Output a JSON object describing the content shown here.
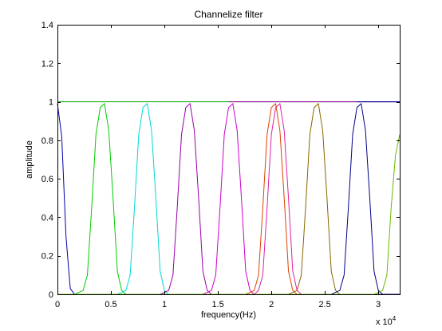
{
  "chart_data": {
    "type": "line",
    "title": "Channelize filter",
    "xlabel": "frequency(Hz)",
    "ylabel": "amplitude",
    "xlim": [
      0,
      32000
    ],
    "ylim": [
      0,
      1.4
    ],
    "x_exponent_label": {
      "base": "x 10",
      "exp": "4"
    },
    "xticks": [
      0,
      5000,
      10000,
      15000,
      20000,
      25000,
      30000
    ],
    "xtick_labels": [
      "0",
      "0.5",
      "1",
      "1.5",
      "2",
      "2.5",
      "3"
    ],
    "yticks": [
      0,
      0.2,
      0.4,
      0.6,
      0.8,
      1,
      1.2,
      1.4
    ],
    "ytick_labels": [
      "0",
      "0.2",
      "0.4",
      "0.6",
      "0.8",
      "1",
      "1.2",
      "1.4"
    ],
    "grid": false,
    "series": [
      {
        "color": "#0000aa",
        "x": [
          0,
          400,
          800,
          1200,
          1600,
          2000,
          2400,
          2800,
          3200,
          32000
        ],
        "y": [
          0.99,
          0.82,
          0.3,
          0.03,
          0.0,
          0.0,
          0.0,
          0.0,
          0.0,
          0.0
        ]
      },
      {
        "color": "#00cc00",
        "x": [
          0,
          1200,
          1600,
          2000,
          2400,
          2800,
          3200,
          3600,
          4000,
          4400,
          4800,
          5200,
          5600,
          6000,
          6400,
          32000
        ],
        "y": [
          0.0,
          0.0,
          0.0,
          0.01,
          0.02,
          0.1,
          0.45,
          0.83,
          0.97,
          0.99,
          0.85,
          0.5,
          0.12,
          0.02,
          0.0,
          0.0
        ]
      },
      {
        "color": "#00d8d8",
        "x": [
          0,
          5200,
          5600,
          6000,
          6400,
          6800,
          7200,
          7600,
          8000,
          8400,
          8800,
          9200,
          9600,
          10000,
          10400,
          32000
        ],
        "y": [
          0.0,
          0.0,
          0.0,
          0.01,
          0.02,
          0.1,
          0.45,
          0.83,
          0.97,
          0.99,
          0.85,
          0.5,
          0.12,
          0.02,
          0.0,
          0.0
        ]
      },
      {
        "color": "#9900aa",
        "x": [
          0,
          9200,
          9600,
          10000,
          10400,
          10800,
          11200,
          11600,
          12000,
          12400,
          12800,
          13200,
          13600,
          14000,
          14400,
          32000
        ],
        "y": [
          0.0,
          0.0,
          0.0,
          0.01,
          0.02,
          0.1,
          0.45,
          0.83,
          0.97,
          0.99,
          0.85,
          0.5,
          0.12,
          0.02,
          0.0,
          0.0
        ]
      },
      {
        "color": "#cc00cc",
        "x": [
          0,
          13200,
          13600,
          14000,
          14400,
          14800,
          15200,
          15600,
          16000,
          16400,
          16800,
          17200,
          17600,
          18000,
          18400,
          32000
        ],
        "y": [
          0.0,
          0.0,
          0.0,
          0.01,
          0.02,
          0.1,
          0.45,
          0.83,
          0.97,
          0.99,
          0.85,
          0.5,
          0.12,
          0.02,
          0.0,
          0.0
        ]
      },
      {
        "color": "#dd4400",
        "x": [
          0,
          17200,
          17600,
          18000,
          18400,
          18800,
          19200,
          19600,
          20000,
          20400,
          20800,
          21200,
          21600,
          22000,
          22400,
          32000
        ],
        "y": [
          0.0,
          0.0,
          0.0,
          0.01,
          0.02,
          0.1,
          0.45,
          0.83,
          0.97,
          0.99,
          0.85,
          0.5,
          0.12,
          0.02,
          0.0,
          0.0
        ]
      },
      {
        "color": "#dd22aa",
        "x": [
          0,
          17600,
          18000,
          18400,
          18800,
          19200,
          19600,
          20000,
          20400,
          20800,
          21200,
          21600,
          22000,
          22400,
          22800,
          23200,
          32000
        ],
        "y": [
          0.0,
          0.0,
          0.0,
          0.0,
          0.02,
          0.1,
          0.45,
          0.83,
          0.97,
          0.99,
          0.85,
          0.5,
          0.12,
          0.02,
          0.0,
          0.0,
          0.0
        ]
      },
      {
        "color": "#886600",
        "x": [
          0,
          21200,
          21600,
          22000,
          22400,
          22800,
          23200,
          23600,
          24000,
          24400,
          24800,
          25200,
          25600,
          26000,
          26400,
          32000
        ],
        "y": [
          0.0,
          0.0,
          0.0,
          0.01,
          0.02,
          0.1,
          0.45,
          0.83,
          0.97,
          0.99,
          0.85,
          0.5,
          0.12,
          0.02,
          0.0,
          0.0
        ]
      },
      {
        "color": "#000088",
        "x": [
          0,
          25200,
          25600,
          26000,
          26400,
          26800,
          27200,
          27600,
          28000,
          28400,
          28800,
          29200,
          29600,
          30000,
          30400,
          32000
        ],
        "y": [
          0.0,
          0.0,
          0.0,
          0.01,
          0.02,
          0.1,
          0.45,
          0.83,
          0.97,
          0.99,
          0.85,
          0.5,
          0.12,
          0.02,
          0.0,
          0.0
        ]
      },
      {
        "color": "#66bb00",
        "x": [
          0,
          29200,
          29600,
          30000,
          30400,
          30800,
          31200,
          31600,
          32000
        ],
        "y": [
          0.0,
          0.0,
          0.0,
          0.01,
          0.02,
          0.1,
          0.45,
          0.72,
          0.83
        ]
      },
      {
        "color": "#00aa00",
        "x": [
          0,
          3200,
          4000,
          32000
        ],
        "y": [
          1.0,
          1.0,
          1.0,
          1.0
        ]
      },
      {
        "color": "#aa00aa",
        "x": [
          16000,
          32000
        ],
        "y": [
          1.0,
          1.0
        ]
      },
      {
        "color": "#0000aa",
        "x": [
          28000,
          32000
        ],
        "y": [
          1.0,
          1.0
        ]
      }
    ]
  }
}
